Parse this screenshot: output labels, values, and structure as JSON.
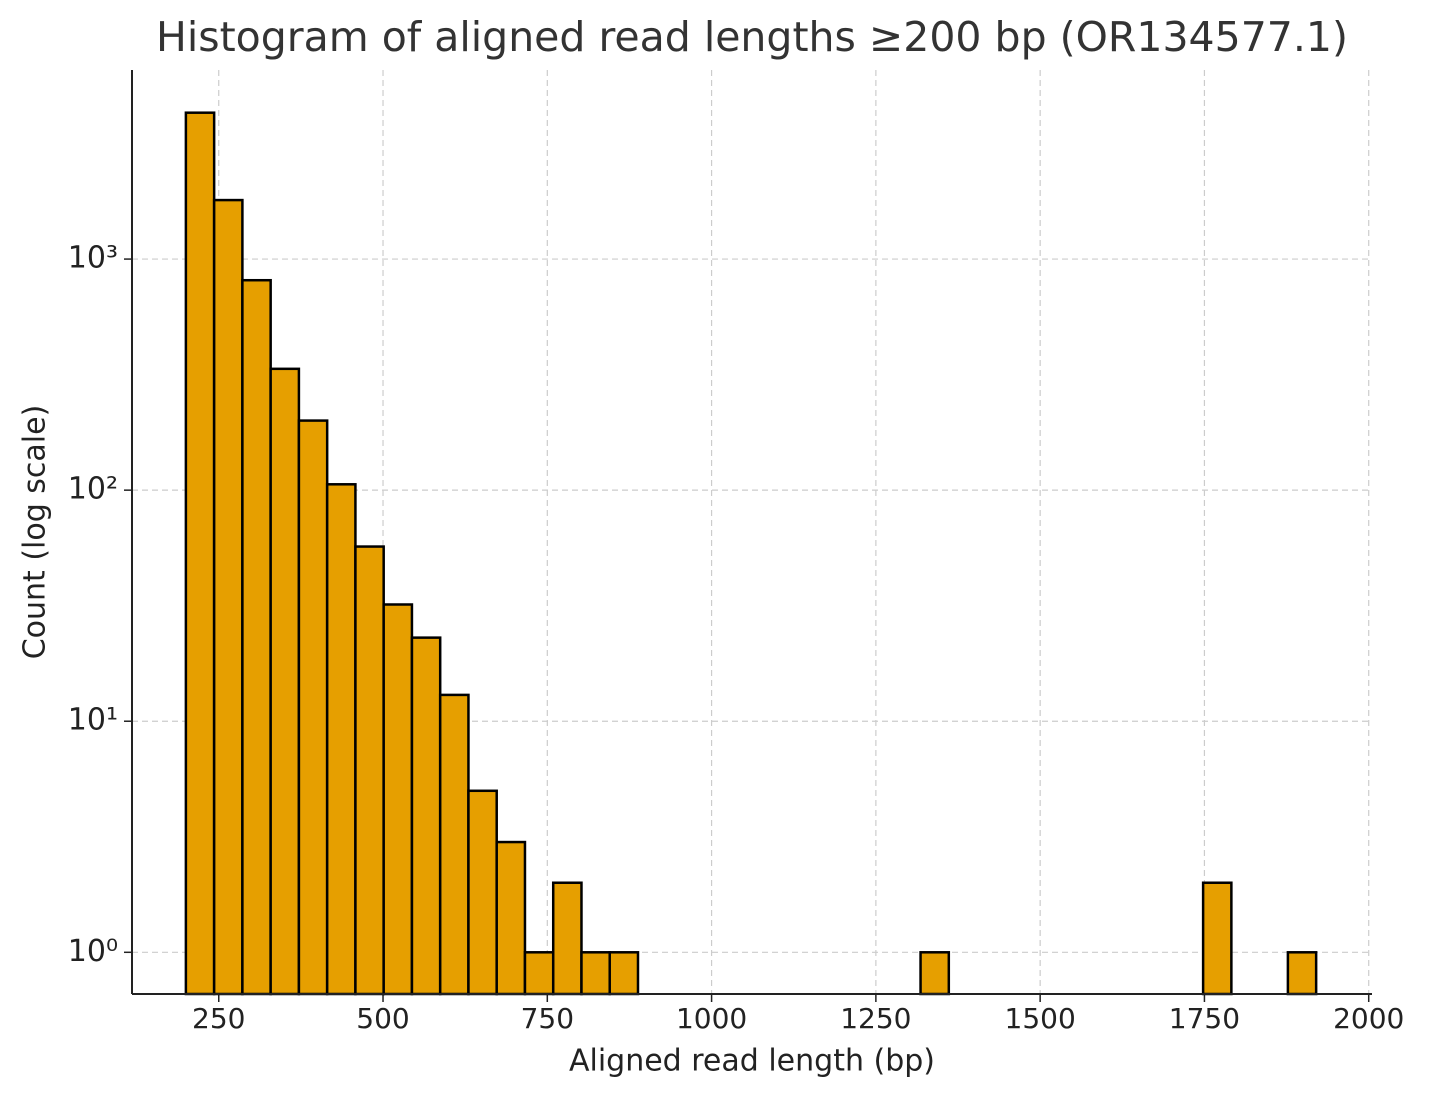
{
  "chart_data": {
    "type": "histogram",
    "title": "Histogram of aligned read lengths ≥200 bp (OR134577.1)",
    "x_label": "Aligned read length (bp)",
    "y_label": "Count (log scale)",
    "bins": [
      200,
      243,
      286,
      329,
      372,
      415,
      458,
      501,
      544,
      587,
      630,
      673,
      716,
      759,
      802,
      845,
      888,
      931,
      974,
      1017,
      1060,
      1103,
      1146,
      1189,
      1232,
      1275,
      1318,
      1361,
      1404,
      1447,
      1490,
      1533,
      1576,
      1619,
      1662,
      1705,
      1748,
      1791,
      1834,
      1877,
      1920
    ],
    "values": [
      4300,
      1800,
      810,
      335,
      200,
      106,
      57,
      32,
      23,
      13,
      5,
      3,
      1,
      2,
      1,
      1,
      0,
      0,
      0,
      0,
      0,
      0,
      0,
      0,
      0,
      0,
      1,
      0,
      0,
      0,
      0,
      0,
      0,
      0,
      0,
      0,
      2,
      0,
      0,
      1
    ],
    "color": "#e69f00",
    "edge_color": "#000000",
    "xlim": [
      118,
      2005
    ],
    "xticks": [
      250,
      500,
      750,
      1000,
      1250,
      1500,
      1750,
      2000
    ],
    "ylim": [
      0.66,
      6580
    ],
    "yticks": [
      {
        "value": 1,
        "label": "10⁰"
      },
      {
        "value": 10,
        "label": "10¹"
      },
      {
        "value": 100,
        "label": "10²"
      },
      {
        "value": 1000,
        "label": "10³"
      }
    ],
    "y_scale": "log",
    "grid": true
  }
}
